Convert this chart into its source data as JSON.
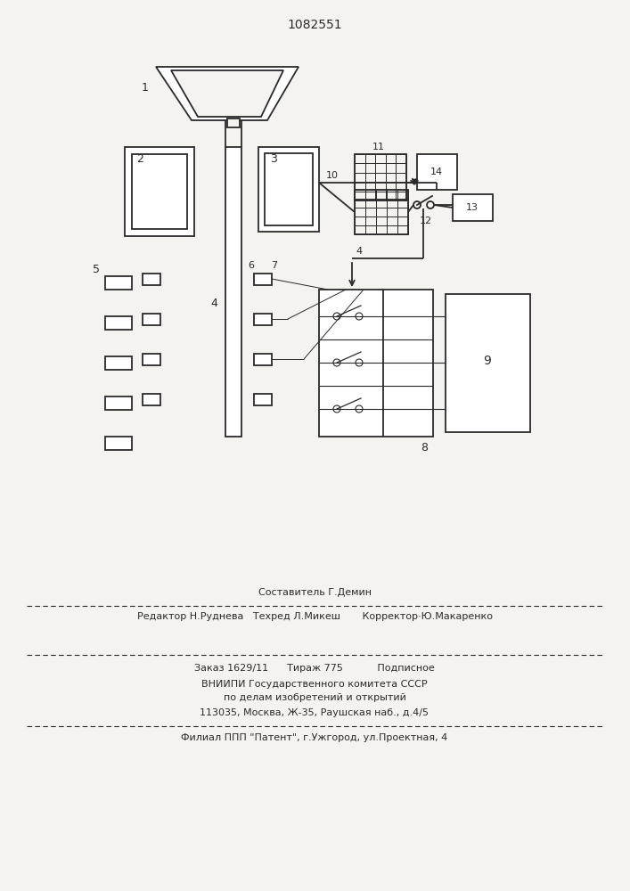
{
  "title": "1082551",
  "bg_color": "#f5f3f0",
  "line_color": "#2a2a2a",
  "footer_line1": "Составитель Г.Демин",
  "footer_line2": "Редактор Н.Руднева   Техред Л.Микеш       Корректор·Ю.Макаренко",
  "footer_line3": "Заказ 1629/11      Тираж 775           Подписное",
  "footer_line4": "ВНИИПИ Государственного комитета СССР",
  "footer_line5": "по делам изобретений и открытий",
  "footer_line6": "113035, Москва, Ж-35, Раушская наб., д.4/5",
  "footer_line7": "Филиал ППП \"Патент\", г.Ужгород, ул.Проектная, 4"
}
